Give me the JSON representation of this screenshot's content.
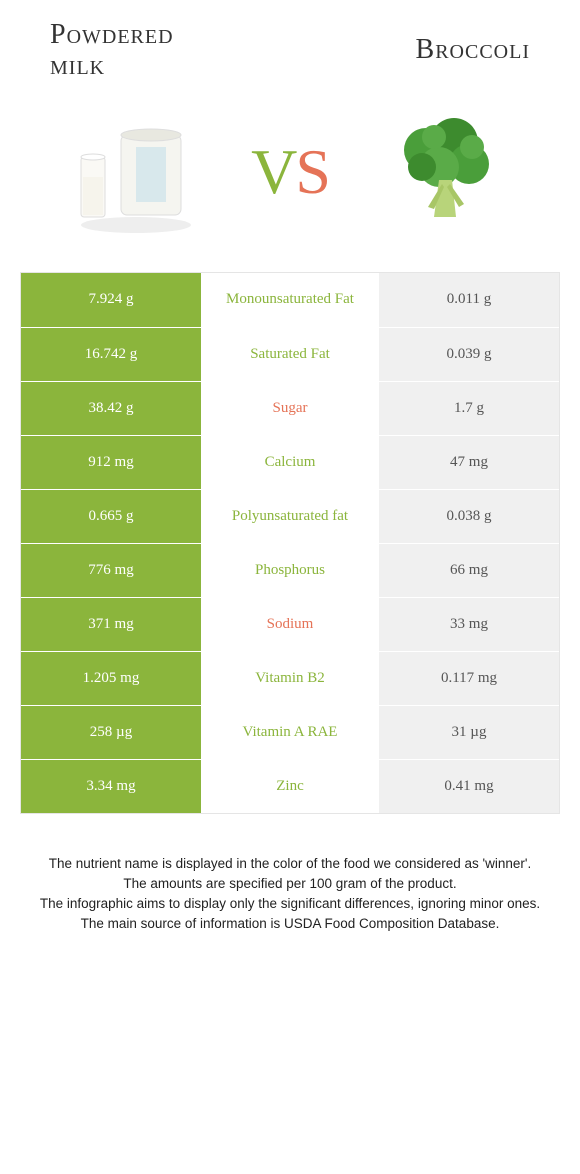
{
  "header": {
    "left_title_line1": "Powdered",
    "left_title_line2": "milk",
    "right_title": "Broccoli",
    "vs_v": "V",
    "vs_s": "S"
  },
  "colors": {
    "green": "#8bb53c",
    "orange": "#e57357",
    "grey": "#f0f0f0",
    "text": "#333333"
  },
  "rows": [
    {
      "label": "Monounsaturated Fat",
      "left": "7.924 g",
      "right": "0.011 g",
      "winner": "left",
      "label_color": "green"
    },
    {
      "label": "Saturated Fat",
      "left": "16.742 g",
      "right": "0.039 g",
      "winner": "left",
      "label_color": "green"
    },
    {
      "label": "Sugar",
      "left": "38.42 g",
      "right": "1.7 g",
      "winner": "left",
      "label_color": "orange"
    },
    {
      "label": "Calcium",
      "left": "912 mg",
      "right": "47 mg",
      "winner": "left",
      "label_color": "green"
    },
    {
      "label": "Polyunsaturated fat",
      "left": "0.665 g",
      "right": "0.038 g",
      "winner": "left",
      "label_color": "green"
    },
    {
      "label": "Phosphorus",
      "left": "776 mg",
      "right": "66 mg",
      "winner": "left",
      "label_color": "green"
    },
    {
      "label": "Sodium",
      "left": "371 mg",
      "right": "33 mg",
      "winner": "left",
      "label_color": "orange"
    },
    {
      "label": "Vitamin B2",
      "left": "1.205 mg",
      "right": "0.117 mg",
      "winner": "left",
      "label_color": "green"
    },
    {
      "label": "Vitamin A RAE",
      "left": "258 µg",
      "right": "31 µg",
      "winner": "left",
      "label_color": "green"
    },
    {
      "label": "Zinc",
      "left": "3.34 mg",
      "right": "0.41 mg",
      "winner": "left",
      "label_color": "green"
    }
  ],
  "footer": {
    "line1": "The nutrient name is displayed in the color of the food we considered as 'winner'.",
    "line2": "The amounts are specified per 100 gram of the product.",
    "line3": "The infographic aims to display only the significant differences, ignoring minor ones.",
    "line4": "The main source of information is USDA Food Composition Database."
  }
}
